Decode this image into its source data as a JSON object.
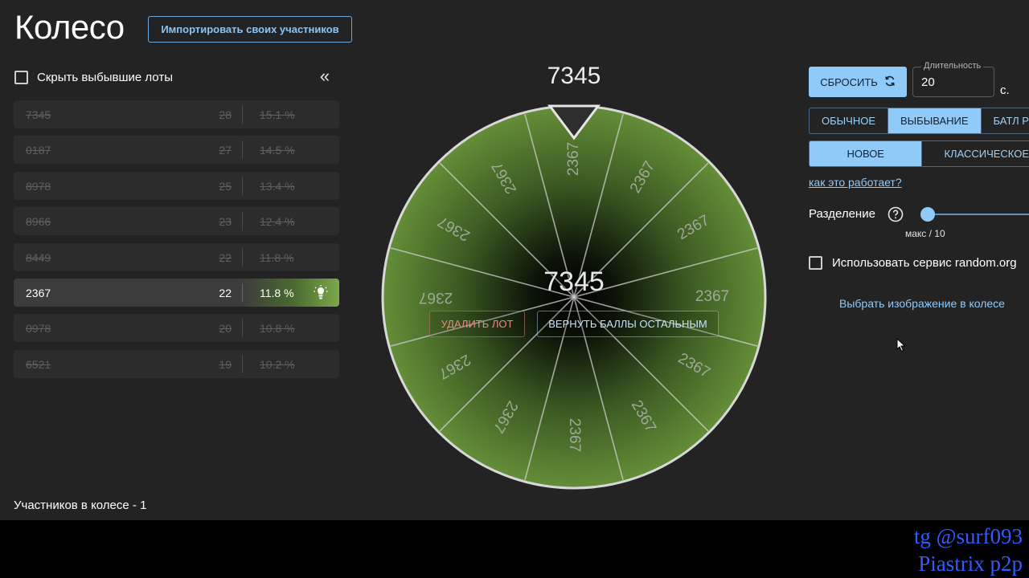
{
  "header": {
    "title": "Колесо",
    "import_label": "Импортировать своих участников"
  },
  "left_panel": {
    "hide_label": "Скрыть выбывшие лоты",
    "collapse_glyph": "«",
    "lots": [
      {
        "name": "7345",
        "count": "28",
        "percent": "15.1 %",
        "eliminated": true
      },
      {
        "name": "0187",
        "count": "27",
        "percent": "14.5 %",
        "eliminated": true
      },
      {
        "name": "8978",
        "count": "25",
        "percent": "13.4 %",
        "eliminated": true
      },
      {
        "name": "8966",
        "count": "23",
        "percent": "12.4 %",
        "eliminated": true
      },
      {
        "name": "8449",
        "count": "22",
        "percent": "11.8 %",
        "eliminated": true
      },
      {
        "name": "2367",
        "count": "22",
        "percent": "11.8 %",
        "eliminated": false,
        "icon": "lightbulb-icon"
      },
      {
        "name": "0978",
        "count": "20",
        "percent": "10.8 %",
        "eliminated": true
      },
      {
        "name": "6521",
        "count": "19",
        "percent": "10.2 %",
        "eliminated": true
      }
    ],
    "participants_text": "Участников в колесе - 1"
  },
  "wheel": {
    "winner_label": "7345",
    "center_text": "7345",
    "segment_label": "2367",
    "segment_count": 12,
    "color": "#5e8a34",
    "delete_label": "УДАЛИТЬ ЛОТ",
    "return_label": "ВЕРНУТЬ БАЛЛЫ ОСТАЛЬНЫМ"
  },
  "settings": {
    "reset_label": "СБРОСИТЬ",
    "reset_icon": "refresh-icon",
    "duration_label": "Длительность",
    "duration_value": "20",
    "seconds_label": "с.",
    "modes": [
      {
        "label": "ОБЫЧНОЕ",
        "selected": false
      },
      {
        "label": "ВЫБЫВАНИЕ",
        "selected": true
      },
      {
        "label": "БАТЛ РОЯЛЬ",
        "selected": false
      }
    ],
    "types": [
      {
        "label": "НОВОЕ",
        "selected": true
      },
      {
        "label": "КЛАССИЧЕСКОЕ",
        "selected": false
      }
    ],
    "how_link": "как это работает?",
    "split_label": "Разделение",
    "split_help_icon": "help-circle-icon",
    "split_value_text": "макс / 10",
    "random_label": "Использовать сервис random.org",
    "image_link": "Выбрать изображение в колесе"
  },
  "watermark": {
    "line1": "tg @surf093",
    "line2": "Piastrix p2p"
  },
  "colors": {
    "accent": "#90caf9",
    "background": "#232323",
    "wheel_green": "#5e8a34",
    "watermark": "#2f5cff"
  }
}
